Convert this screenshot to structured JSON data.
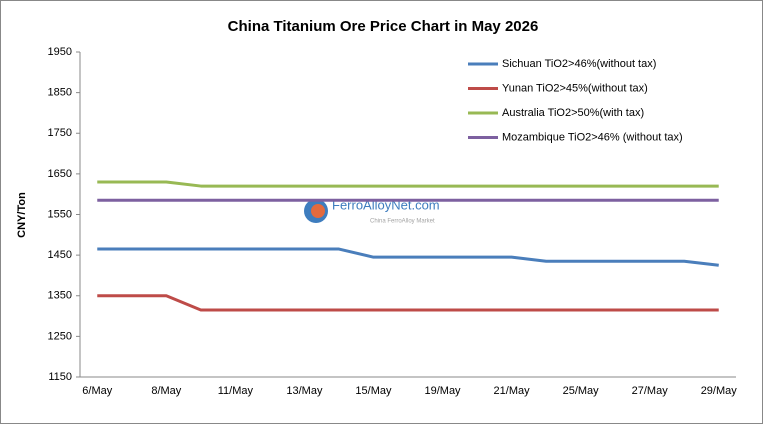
{
  "chart_data": {
    "type": "line",
    "title": "China Titanium Ore Price Chart in May 2026",
    "y_label": "CNY/Ton",
    "watermark": "FerroAlloyNet.com",
    "watermark_subtitle": "China FerroAlloy Market",
    "categories": [
      "6/May",
      null,
      "8/May",
      null,
      "11/May",
      null,
      "13/May",
      null,
      "15/May",
      null,
      "19/May",
      null,
      "21/May",
      null,
      "25/May",
      null,
      "27/May",
      null,
      "29/May"
    ],
    "ylim": [
      1150,
      1950
    ],
    "yticks": [
      1150,
      1250,
      1350,
      1450,
      1550,
      1650,
      1750,
      1850,
      1950
    ],
    "grid": false,
    "legend": "top-right",
    "series": [
      {
        "name": "Sichuan TiO2>46%(without tax)",
        "color": "#4a7ebb",
        "values": [
          1465,
          1465,
          1465,
          1465,
          1465,
          1465,
          1465,
          1465,
          1445,
          1445,
          1445,
          1445,
          1445,
          1435,
          1435,
          1435,
          1435,
          1435,
          1425
        ]
      },
      {
        "name": "Yunan TiO2>45%(without tax)",
        "color": "#be4b48",
        "values": [
          1350,
          1350,
          1350,
          1315,
          1315,
          1315,
          1315,
          1315,
          1315,
          1315,
          1315,
          1315,
          1315,
          1315,
          1315,
          1315,
          1315,
          1315,
          1315
        ]
      },
      {
        "name": "Australia TiO2>50%(with tax)",
        "color": "#98b954",
        "values": [
          1630,
          1630,
          1630,
          1620,
          1620,
          1620,
          1620,
          1620,
          1620,
          1620,
          1620,
          1620,
          1620,
          1620,
          1620,
          1620,
          1620,
          1620,
          1620
        ]
      },
      {
        "name": "Mozambique TiO2>46% (without tax)",
        "color": "#7d60a0",
        "values": [
          1585,
          1585,
          1585,
          1585,
          1585,
          1585,
          1585,
          1585,
          1585,
          1585,
          1585,
          1585,
          1585,
          1585,
          1585,
          1585,
          1585,
          1585,
          1585
        ]
      }
    ]
  }
}
